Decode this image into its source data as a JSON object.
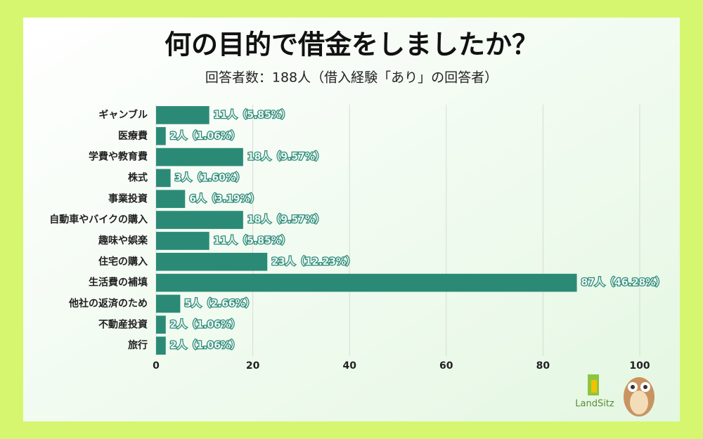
{
  "chart_data": {
    "type": "bar",
    "orientation": "horizontal",
    "title": "何の目的で借金をしましたか？",
    "subtitle": "回答者数：188人（借入経験「あり」の回答者）",
    "categories": [
      "ギャンブル",
      "医療費",
      "学費や教育費",
      "株式",
      "事業投資",
      "自動車やバイクの購入",
      "趣味や娯楽",
      "住宅の購入",
      "生活費の補填",
      "他社の返済のため",
      "不動産投資",
      "旅行"
    ],
    "values": [
      11,
      2,
      18,
      3,
      6,
      18,
      11,
      23,
      87,
      5,
      2,
      2
    ],
    "value_labels": [
      "11人（5.85%）",
      "2人（1.06%）",
      "18人（9.57%）",
      "3人（1.60%）",
      "6人（3.19%）",
      "18人（9.57%）",
      "11人（5.85%）",
      "23人（12.23%）",
      "87人（46.28%）",
      "5人（2.66%）",
      "2人（1.06%）",
      "2人（1.06%）"
    ],
    "color": "#2b8a76",
    "xlim": [
      0,
      100
    ],
    "xticks": [
      0,
      20,
      40,
      60,
      80,
      100
    ],
    "grid": true,
    "logo": "LandSitz"
  }
}
